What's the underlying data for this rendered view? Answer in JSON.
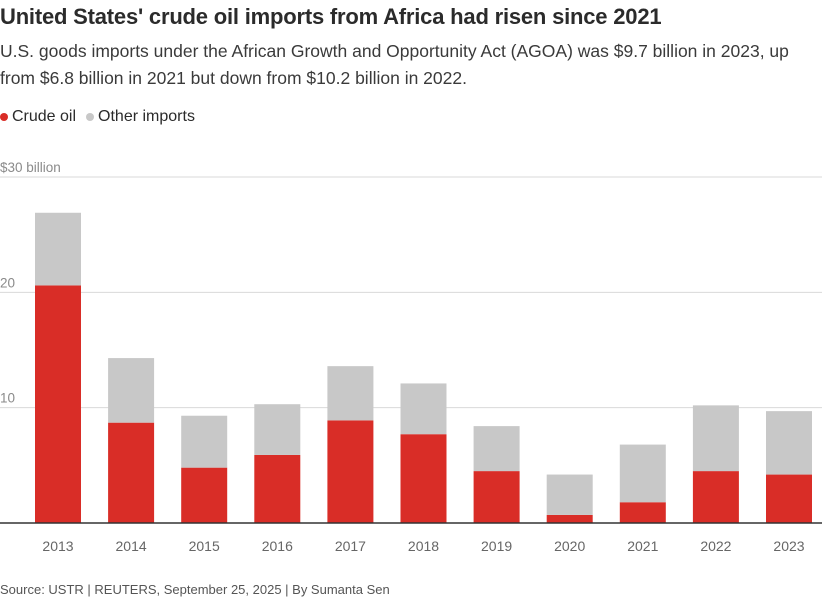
{
  "header": {
    "title": "United States' crude oil imports from Africa had risen since 2021",
    "subtitle": "U.S. goods imports under the African Growth and Opportunity Act (AGOA) was $9.7 billion in 2023, up from $6.8 billion in 2021 but down from $10.2 billion in 2022."
  },
  "legend": {
    "items": [
      {
        "label": "Crude oil",
        "color": "#d92d27"
      },
      {
        "label": "Other imports",
        "color": "#c8c8c8"
      }
    ]
  },
  "chart_data": {
    "type": "bar",
    "stacked": true,
    "categories": [
      "2013",
      "2014",
      "2015",
      "2016",
      "2017",
      "2018",
      "2019",
      "2020",
      "2021",
      "2022",
      "2023"
    ],
    "series": [
      {
        "name": "Crude oil",
        "color": "#d92d27",
        "values": [
          20.6,
          8.7,
          4.8,
          5.9,
          8.9,
          7.7,
          4.5,
          0.7,
          1.8,
          4.5,
          4.2
        ]
      },
      {
        "name": "Other imports",
        "color": "#c8c8c8",
        "values": [
          6.3,
          5.6,
          4.5,
          4.4,
          4.7,
          4.4,
          3.9,
          3.5,
          5.0,
          5.7,
          5.5
        ]
      }
    ],
    "ylim": [
      0,
      30
    ],
    "yticks": [
      {
        "value": 30,
        "label": "$30 billion"
      },
      {
        "value": 20,
        "label": "20"
      },
      {
        "value": 10,
        "label": "10"
      }
    ],
    "grid": true
  },
  "footer": {
    "source": "Source: USTR | REUTERS, September 25, 2025 | By Sumanta Sen"
  }
}
